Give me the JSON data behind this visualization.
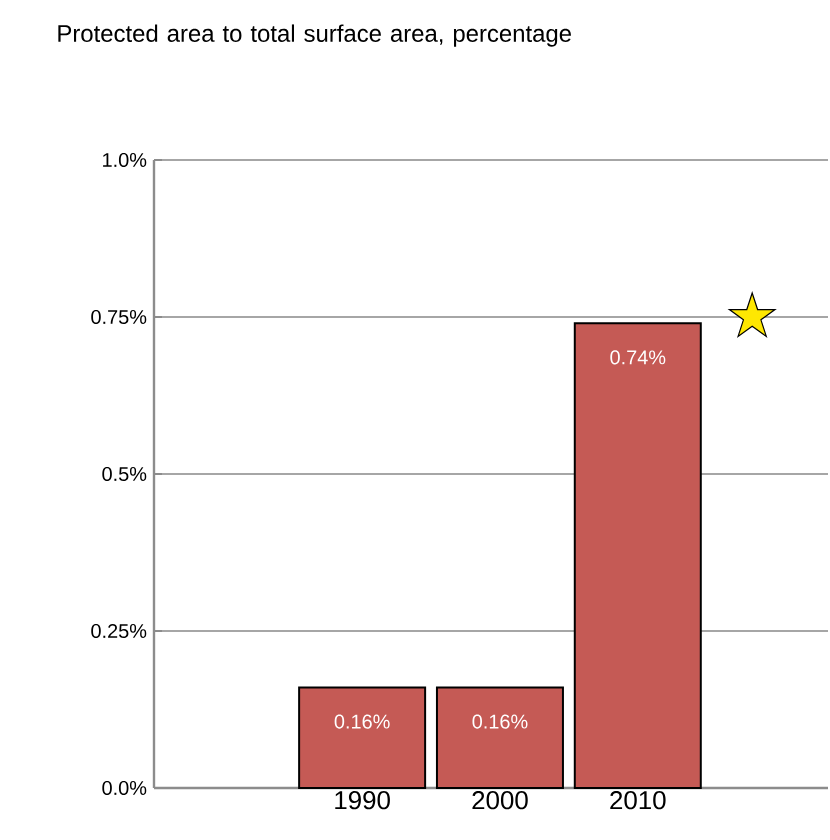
{
  "chart_data": {
    "type": "bar",
    "title": "Protected area to total surface area, percentage",
    "categories": [
      "1990",
      "2000",
      "2010"
    ],
    "values": [
      0.16,
      0.16,
      0.74
    ],
    "value_labels": [
      "0.16%",
      "0.16%",
      "0.74%"
    ],
    "color": "#c55a55",
    "ylim": [
      0,
      1
    ],
    "yticks": [
      {
        "value": 0,
        "label": "0.0%"
      },
      {
        "value": 0.25,
        "label": "0.25%"
      },
      {
        "value": 0.5,
        "label": "0.5%"
      },
      {
        "value": 0.75,
        "label": "0.75%"
      },
      {
        "value": 1,
        "label": "1.0%"
      }
    ],
    "grid": "y"
  }
}
